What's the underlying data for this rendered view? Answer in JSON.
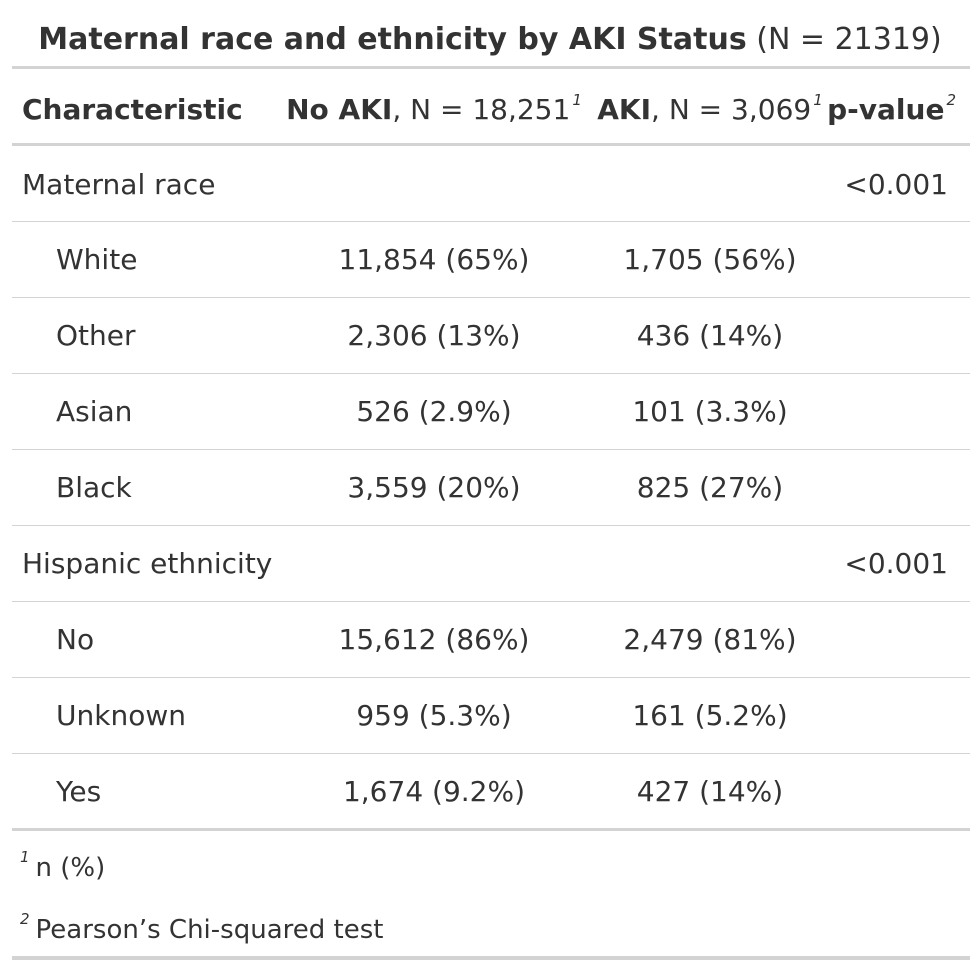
{
  "title": {
    "bold": "Maternal race and ethnicity by AKI Status",
    "rest": "(N = 21319)"
  },
  "header": {
    "characteristic": "Characteristic",
    "no_aki_bold": "No AKI",
    "no_aki_rest": ", N = 18,251",
    "no_aki_sup": "1",
    "aki_bold": "AKI",
    "aki_rest": ", N = 3,069",
    "aki_sup": "1",
    "pvalue": "p-value",
    "pvalue_sup": "2"
  },
  "rows": [
    {
      "label": "Maternal race",
      "no_aki": "",
      "aki": "",
      "p": "<0.001"
    },
    {
      "label": "White",
      "no_aki": "11,854 (65%)",
      "aki": "1,705 (56%)",
      "p": ""
    },
    {
      "label": "Other",
      "no_aki": "2,306 (13%)",
      "aki": "436 (14%)",
      "p": ""
    },
    {
      "label": "Asian",
      "no_aki": "526 (2.9%)",
      "aki": "101 (3.3%)",
      "p": ""
    },
    {
      "label": "Black",
      "no_aki": "3,559 (20%)",
      "aki": "825 (27%)",
      "p": ""
    },
    {
      "label": "Hispanic ethnicity",
      "no_aki": "",
      "aki": "",
      "p": "<0.001"
    },
    {
      "label": "No",
      "no_aki": "15,612 (86%)",
      "aki": "2,479 (81%)",
      "p": ""
    },
    {
      "label": "Unknown",
      "no_aki": "959 (5.3%)",
      "aki": "161 (5.2%)",
      "p": ""
    },
    {
      "label": "Yes",
      "no_aki": "1,674 (9.2%)",
      "aki": "427 (14%)",
      "p": ""
    }
  ],
  "footnotes": [
    {
      "sup": "1",
      "text": "n (%)"
    },
    {
      "sup": "2",
      "text": "Pearson’s Chi-squared test"
    }
  ]
}
